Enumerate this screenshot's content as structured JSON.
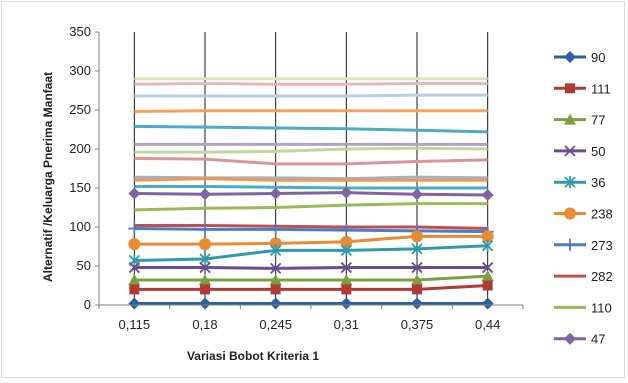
{
  "chart_data": {
    "type": "line",
    "title": "",
    "xlabel": "Variasi Bobot Kriteria 1",
    "ylabel": "Alternatif /Keluarga  Pnerima Manfaat",
    "categories": [
      "0,115",
      "0,18",
      "0,245",
      "0,31",
      "0,375",
      "0,44"
    ],
    "ylim": [
      0,
      350
    ],
    "yticks": [
      "0",
      "50",
      "100",
      "150",
      "200",
      "250",
      "300",
      "350"
    ],
    "grid": "vertical lines at categories",
    "legend_position": "right",
    "series": [
      {
        "name": "90",
        "color": "#2e5fa3",
        "marker": "diamond",
        "values": [
          2,
          2,
          2,
          2,
          2,
          2
        ]
      },
      {
        "name": "111",
        "color": "#b03a36",
        "marker": "square",
        "values": [
          20,
          20,
          20,
          20,
          20,
          25
        ]
      },
      {
        "name": "77",
        "color": "#7aa040",
        "marker": "triangle",
        "values": [
          32,
          32,
          32,
          32,
          32,
          37
        ]
      },
      {
        "name": "50",
        "color": "#6a4c93",
        "marker": "x",
        "values": [
          48,
          48,
          47,
          48,
          48,
          48
        ]
      },
      {
        "name": "36",
        "color": "#2f9aa8",
        "marker": "star",
        "values": [
          57,
          59,
          70,
          70,
          72,
          76
        ]
      },
      {
        "name": "238",
        "color": "#e88b33",
        "marker": "circle",
        "values": [
          78,
          78,
          79,
          81,
          88,
          88
        ]
      },
      {
        "name": "273",
        "color": "#4a7ec3",
        "marker": "plus",
        "values": [
          98,
          97,
          97,
          96,
          95,
          94
        ]
      },
      {
        "name": "282",
        "color": "#c0504d",
        "marker": "none",
        "values": [
          102,
          102,
          101,
          100,
          100,
          98
        ]
      },
      {
        "name": "110",
        "color": "#9bbb59",
        "marker": "none",
        "values": [
          122,
          124,
          125,
          128,
          130,
          130
        ]
      },
      {
        "name": "47",
        "color": "#8064a2",
        "marker": "diamond",
        "values": [
          143,
          142,
          143,
          144,
          142,
          141
        ]
      },
      {
        "name": "",
        "color": "#4bacc6",
        "marker": "none",
        "values": [
          152,
          152,
          151,
          150,
          150,
          150
        ]
      },
      {
        "name": "",
        "color": "#f79646",
        "marker": "none",
        "values": [
          160,
          162,
          160,
          160,
          160,
          160
        ]
      },
      {
        "name": "",
        "color": "#95b3d7",
        "marker": "none",
        "values": [
          164,
          163,
          163,
          162,
          164,
          163
        ]
      },
      {
        "name": "",
        "color": "#d99694",
        "marker": "none",
        "values": [
          188,
          187,
          181,
          181,
          184,
          186
        ]
      },
      {
        "name": "",
        "color": "#c3d69b",
        "marker": "none",
        "values": [
          196,
          196,
          197,
          200,
          201,
          200
        ]
      },
      {
        "name": "",
        "color": "#b3a2c7",
        "marker": "none",
        "values": [
          206,
          206,
          206,
          206,
          206,
          206
        ]
      },
      {
        "name": "",
        "color": "#4bacc6",
        "marker": "none",
        "values": [
          229,
          228,
          227,
          226,
          224,
          222
        ]
      },
      {
        "name": "",
        "color": "#f7a35c",
        "marker": "none",
        "values": [
          248,
          249,
          249,
          249,
          249,
          249
        ]
      },
      {
        "name": "",
        "color": "#b9cde5",
        "marker": "none",
        "values": [
          268,
          268,
          268,
          268,
          269,
          269
        ]
      },
      {
        "name": "",
        "color": "#e6b9b8",
        "marker": "none",
        "values": [
          283,
          284,
          283,
          283,
          284,
          284
        ]
      },
      {
        "name": "",
        "color": "#d7e4bc",
        "marker": "none",
        "values": [
          290,
          290,
          290,
          290,
          290,
          290
        ]
      }
    ]
  }
}
